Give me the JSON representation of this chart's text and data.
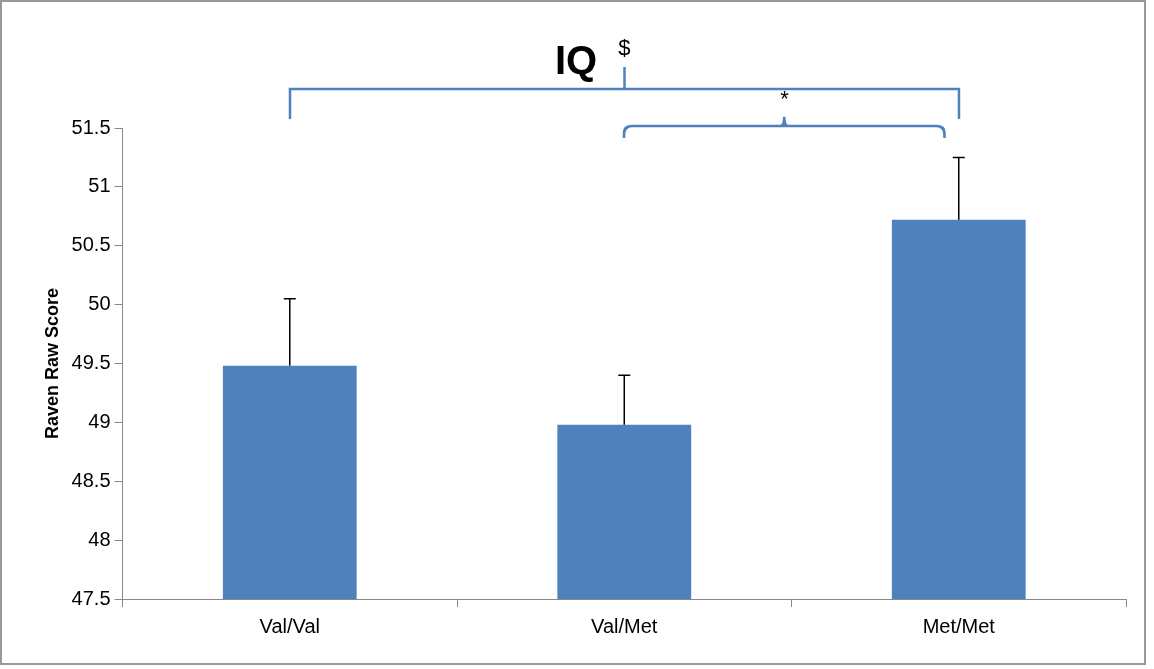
{
  "chart_data": {
    "type": "bar",
    "title": "IQ",
    "ylabel": "Raven Raw Score",
    "categories": [
      "Val/Val",
      "Val/Met",
      "Met/Met"
    ],
    "values": [
      49.48,
      48.98,
      50.72
    ],
    "errors": [
      0.57,
      0.42,
      0.53
    ],
    "color": "#4f81bd",
    "ylim": [
      47.5,
      51.5
    ],
    "yticks": [
      47.5,
      48,
      48.5,
      49,
      49.5,
      50,
      50.5,
      51,
      51.5
    ],
    "grid": false,
    "legend": false,
    "annotations": [
      "$",
      "*"
    ]
  }
}
